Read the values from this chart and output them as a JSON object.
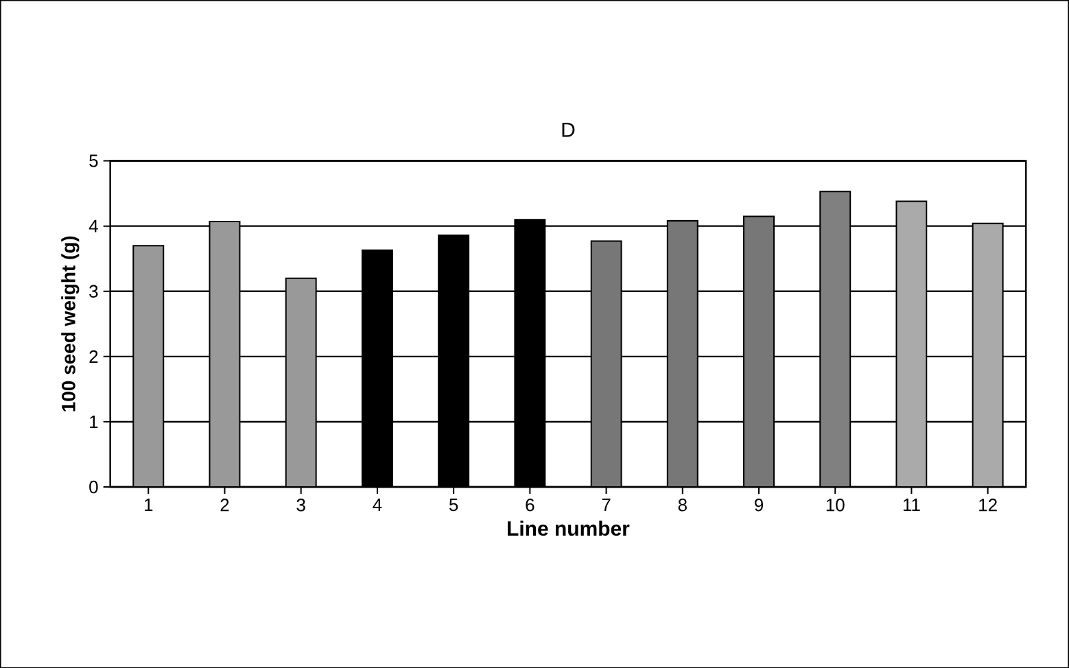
{
  "chart_data": {
    "type": "bar",
    "title": "D",
    "xlabel": "Line number",
    "ylabel": "100 seed weight (g)",
    "categories": [
      "1",
      "2",
      "3",
      "4",
      "5",
      "6",
      "7",
      "8",
      "9",
      "10",
      "11",
      "12"
    ],
    "values": [
      3.7,
      4.07,
      3.2,
      3.63,
      3.86,
      4.1,
      3.77,
      4.08,
      4.15,
      4.53,
      4.38,
      4.04
    ],
    "colors": [
      "#999999",
      "#999999",
      "#999999",
      "#000000",
      "#000000",
      "#000000",
      "#777777",
      "#777777",
      "#777777",
      "#808080",
      "#aaaaaa",
      "#aaaaaa"
    ],
    "ylim": [
      0,
      5
    ],
    "yticks": [
      0,
      1,
      2,
      3,
      4,
      5
    ],
    "grid": "y"
  }
}
